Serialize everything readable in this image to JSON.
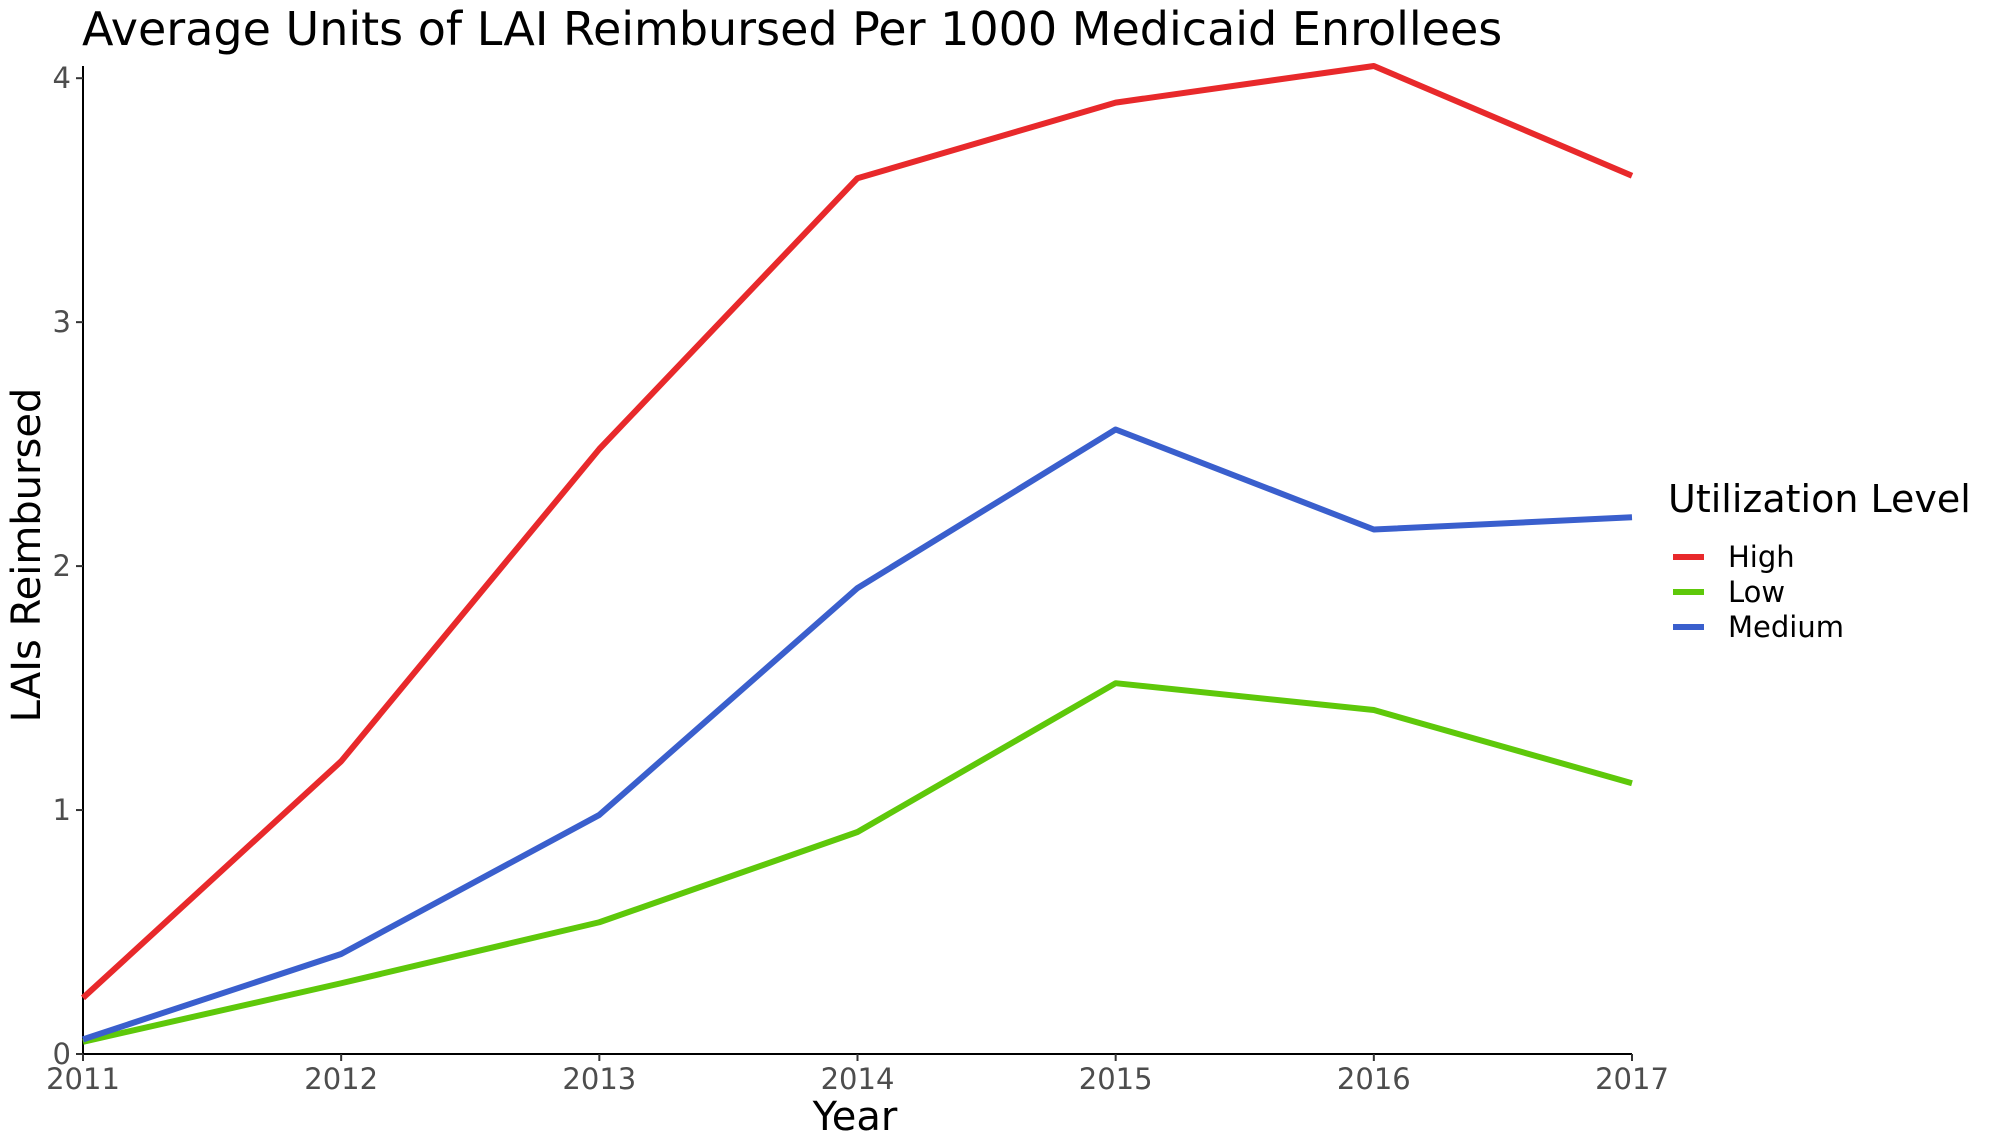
{
  "chart_data": {
    "type": "line",
    "title": "Average Units of LAI Reimbursed Per 1000 Medicaid Enrollees",
    "xlabel": "Year",
    "ylabel": "LAIs Reimbursed",
    "x": [
      2011,
      2012,
      2013,
      2014,
      2015,
      2016,
      2017
    ],
    "xlim": [
      2011,
      2017
    ],
    "ylim": [
      0,
      4.05
    ],
    "y_ticks": [
      0,
      1,
      2,
      3,
      4
    ],
    "grid": false,
    "legend": {
      "title": "Utilization Level",
      "placement": "right"
    },
    "series": [
      {
        "name": "High",
        "color": "#e8292b",
        "values": [
          0.23,
          1.2,
          2.48,
          3.59,
          3.9,
          4.05,
          3.6
        ]
      },
      {
        "name": "Low",
        "color": "#5ec80a",
        "values": [
          0.05,
          0.29,
          0.54,
          0.91,
          1.52,
          1.41,
          1.11
        ]
      },
      {
        "name": "Medium",
        "color": "#3a5fcd",
        "values": [
          0.06,
          0.41,
          0.98,
          1.91,
          2.56,
          2.15,
          2.2
        ]
      }
    ]
  }
}
